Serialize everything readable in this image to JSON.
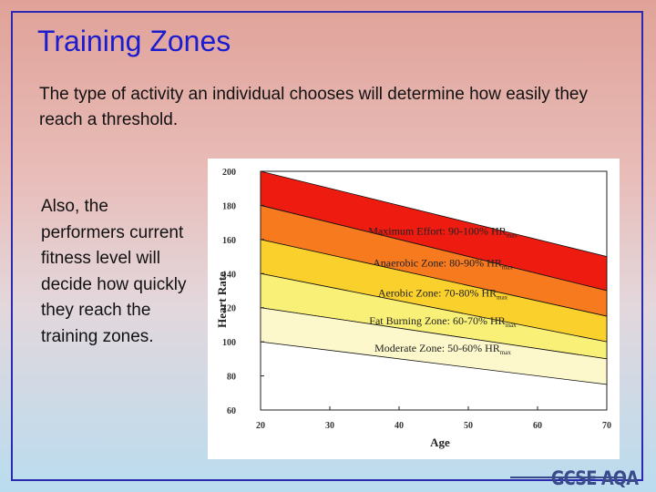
{
  "slide": {
    "title": "Training Zones",
    "intro": "The type of activity an individual chooses will determine how easily they reach a threshold.",
    "side_text": "Also, the performers current fitness level will decide how quickly they reach the training zones.",
    "logo": "GCSE AQA"
  },
  "colors": {
    "title": "#1b1bd0",
    "frame": "#2a2ab0",
    "zone_max": "#ee1b10",
    "zone_anaerobic": "#f77a1f",
    "zone_aerobic": "#fad02c",
    "zone_fat": "#f9f078",
    "zone_moderate": "#fcf8cc"
  },
  "chart_data": {
    "type": "area",
    "xlabel": "Age",
    "ylabel": "Heart Rate",
    "xlim": [
      20,
      70
    ],
    "ylim": [
      60,
      200
    ],
    "x_ticks": [
      "20",
      "30",
      "40",
      "50",
      "60",
      "70"
    ],
    "y_ticks": [
      "60",
      "80",
      "100",
      "120",
      "140",
      "160",
      "180",
      "200"
    ],
    "bands": [
      {
        "name": "Maximum Effort: 90-100% HR",
        "sub": "max",
        "lower": [
          180,
          130
        ],
        "upper": [
          200,
          150
        ]
      },
      {
        "name": "Anaerobic Zone: 80-90% HR",
        "sub": "max",
        "lower": [
          160,
          115
        ],
        "upper": [
          180,
          130
        ]
      },
      {
        "name": "Aerobic Zone: 70-80% HR",
        "sub": "max",
        "lower": [
          140,
          100
        ],
        "upper": [
          160,
          115
        ]
      },
      {
        "name": "Fat Burning Zone: 60-70% HR",
        "sub": "max",
        "lower": [
          120,
          90
        ],
        "upper": [
          140,
          100
        ]
      },
      {
        "name": "Moderate Zone: 50-60% HR",
        "sub": "max",
        "lower": [
          100,
          75
        ],
        "upper": [
          120,
          90
        ]
      }
    ],
    "grid": false,
    "legend": "none"
  }
}
